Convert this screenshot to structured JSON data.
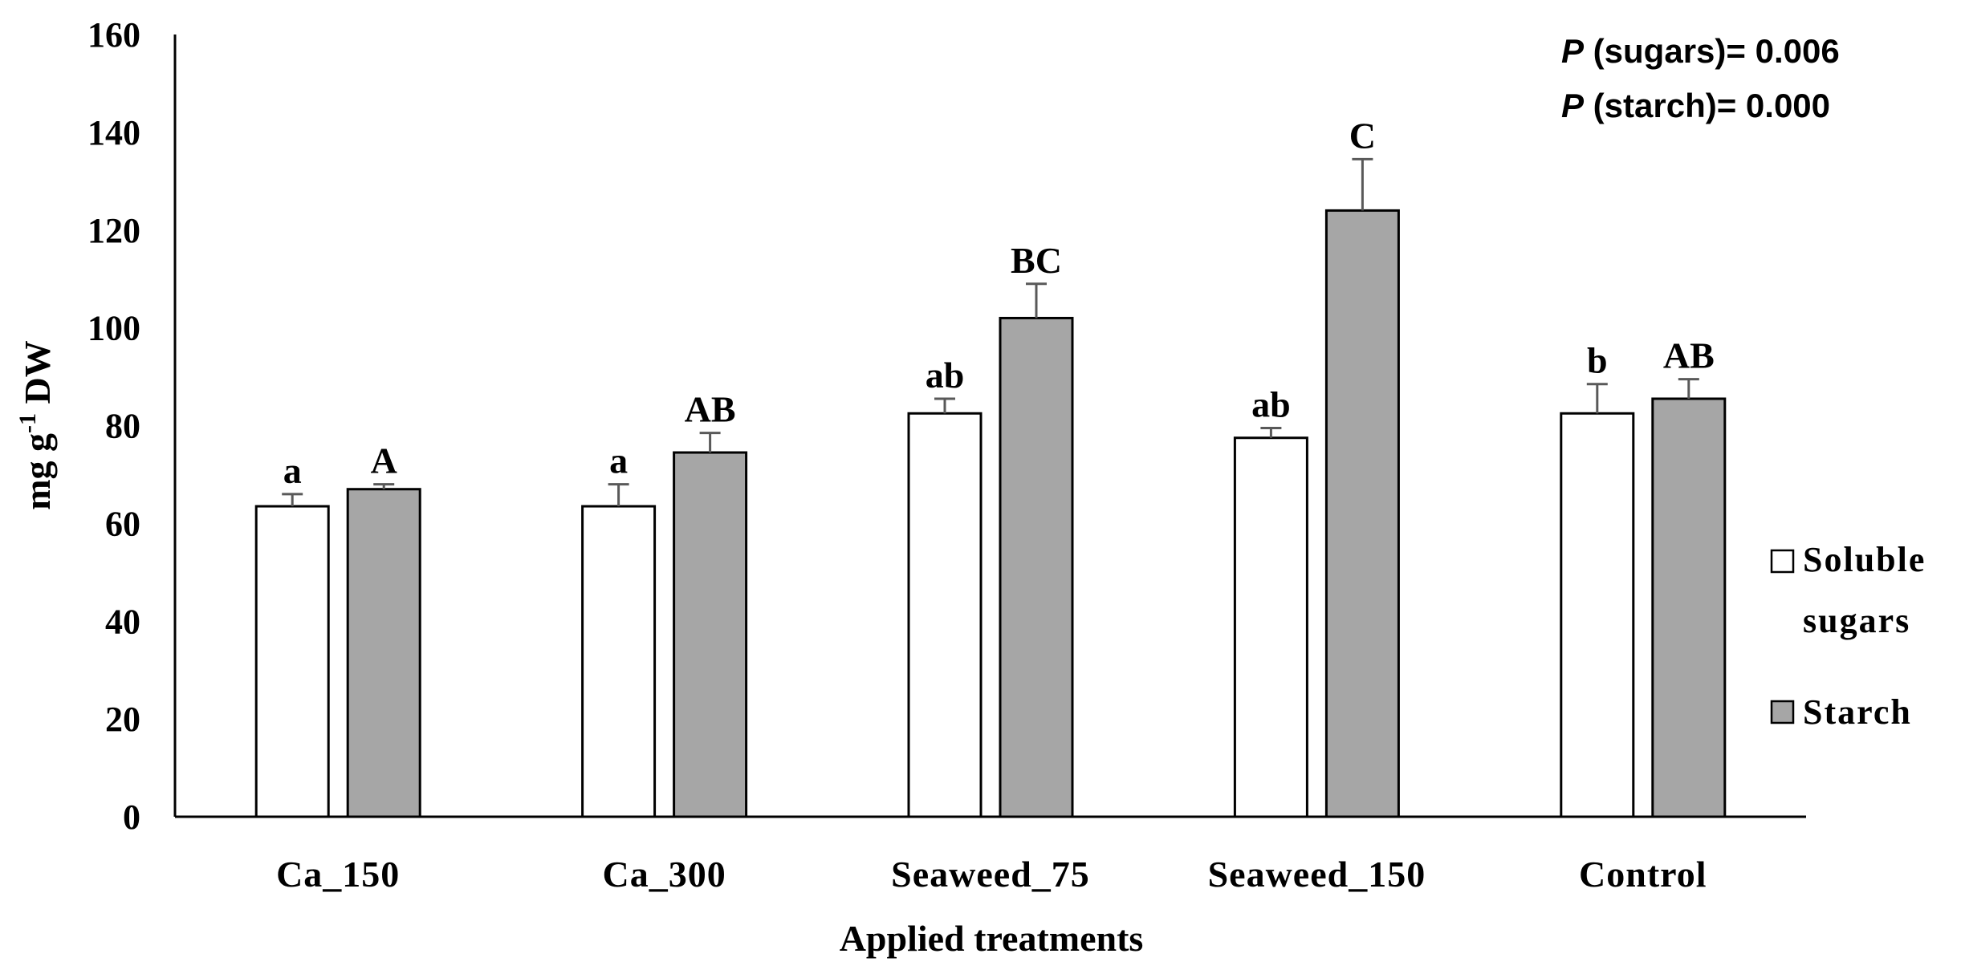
{
  "chart_data": {
    "type": "bar",
    "title": "",
    "xlabel": "Applied treatments",
    "ylabel": {
      "base": "mg g",
      "sup": "-1",
      "rest": " DW"
    },
    "ylim": [
      0,
      160
    ],
    "yticks": [
      0,
      20,
      40,
      60,
      80,
      100,
      120,
      140,
      160
    ],
    "grid": false,
    "legend_position": "right",
    "categories": [
      "Ca_150",
      "Ca_300",
      "Seaweed_75",
      "Seaweed_150",
      "Control"
    ],
    "series": [
      {
        "name": "Soluble sugars",
        "legend_lines": [
          "Soluble",
          "sugars"
        ],
        "color": "#ffffff",
        "values": [
          63.5,
          63.5,
          82.5,
          77.5,
          82.5
        ],
        "errors": [
          2.5,
          4.5,
          3.0,
          2.0,
          6.0
        ],
        "letters": [
          "a",
          "a",
          "ab",
          "ab",
          "b"
        ]
      },
      {
        "name": "Starch",
        "legend_lines": [
          "Starch"
        ],
        "color": "#a6a6a6",
        "values": [
          67.0,
          74.5,
          102.0,
          124.0,
          85.5
        ],
        "errors": [
          1.0,
          4.0,
          7.0,
          10.5,
          4.0
        ],
        "letters": [
          "A",
          "AB",
          "BC",
          "C",
          "AB"
        ]
      }
    ],
    "annotations": [
      {
        "italic": "P",
        "rest": " (sugars)= 0.006"
      },
      {
        "italic": "P",
        "rest": " (starch)= 0.000"
      }
    ]
  }
}
